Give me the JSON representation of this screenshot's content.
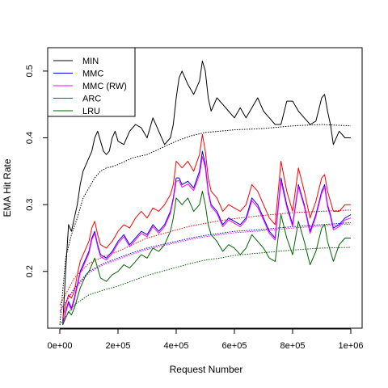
{
  "chart_data": {
    "type": "line",
    "title": "",
    "xlabel": "Request Number",
    "ylabel": "EMA Hit Rate",
    "xlim": [
      0,
      1000000
    ],
    "ylim": [
      0.115,
      0.535
    ],
    "x_ticks": [
      0,
      200000,
      400000,
      600000,
      800000,
      1000000
    ],
    "x_tick_labels": [
      "0e+00",
      "2e+05",
      "4e+05",
      "6e+05",
      "8e+05",
      "1e+06"
    ],
    "y_ticks": [
      0.2,
      0.3,
      0.4,
      0.5
    ],
    "y_tick_labels": [
      "0.2",
      "0.3",
      "0.4",
      "0.5"
    ],
    "grid": false,
    "legend_position": "top-left",
    "series": [
      {
        "name": "MIN",
        "color": "#000000",
        "x": [
          10000,
          20000,
          30000,
          40000,
          50000,
          60000,
          70000,
          80000,
          90000,
          100000,
          110000,
          120000,
          130000,
          140000,
          150000,
          160000,
          170000,
          180000,
          190000,
          200000,
          220000,
          240000,
          260000,
          280000,
          300000,
          320000,
          340000,
          360000,
          380000,
          390000,
          400000,
          410000,
          420000,
          440000,
          460000,
          480000,
          490000,
          500000,
          510000,
          520000,
          540000,
          560000,
          580000,
          600000,
          620000,
          640000,
          660000,
          680000,
          700000,
          720000,
          740000,
          760000,
          780000,
          800000,
          820000,
          840000,
          860000,
          880000,
          900000,
          910000,
          920000,
          930000,
          940000,
          960000,
          980000,
          1000000
        ],
        "y": [
          0.12,
          0.2,
          0.27,
          0.26,
          0.28,
          0.3,
          0.33,
          0.35,
          0.36,
          0.37,
          0.38,
          0.4,
          0.41,
          0.395,
          0.38,
          0.375,
          0.38,
          0.4,
          0.41,
          0.395,
          0.39,
          0.41,
          0.42,
          0.415,
          0.4,
          0.43,
          0.41,
          0.39,
          0.4,
          0.42,
          0.46,
          0.49,
          0.5,
          0.48,
          0.465,
          0.485,
          0.515,
          0.5,
          0.46,
          0.44,
          0.46,
          0.45,
          0.44,
          0.43,
          0.445,
          0.43,
          0.445,
          0.46,
          0.44,
          0.43,
          0.42,
          0.42,
          0.455,
          0.455,
          0.44,
          0.43,
          0.42,
          0.425,
          0.46,
          0.465,
          0.44,
          0.42,
          0.39,
          0.41,
          0.4,
          0.4
        ]
      },
      {
        "name": "MMC",
        "color": "#0000ff",
        "x": [
          10000,
          20000,
          30000,
          40000,
          50000,
          60000,
          70000,
          80000,
          90000,
          100000,
          110000,
          120000,
          130000,
          140000,
          160000,
          180000,
          200000,
          220000,
          240000,
          260000,
          280000,
          300000,
          320000,
          340000,
          360000,
          380000,
          390000,
          400000,
          410000,
          420000,
          440000,
          460000,
          480000,
          490000,
          500000,
          510000,
          520000,
          540000,
          560000,
          580000,
          600000,
          620000,
          640000,
          660000,
          680000,
          700000,
          720000,
          740000,
          760000,
          780000,
          800000,
          820000,
          840000,
          860000,
          880000,
          900000,
          910000,
          920000,
          930000,
          940000,
          960000,
          980000,
          1000000
        ],
        "y": [
          0.12,
          0.14,
          0.155,
          0.145,
          0.16,
          0.18,
          0.2,
          0.21,
          0.22,
          0.23,
          0.25,
          0.26,
          0.24,
          0.225,
          0.22,
          0.23,
          0.245,
          0.255,
          0.24,
          0.25,
          0.26,
          0.255,
          0.27,
          0.26,
          0.27,
          0.29,
          0.31,
          0.34,
          0.34,
          0.33,
          0.335,
          0.325,
          0.35,
          0.38,
          0.36,
          0.32,
          0.3,
          0.29,
          0.27,
          0.28,
          0.275,
          0.27,
          0.28,
          0.31,
          0.3,
          0.28,
          0.26,
          0.25,
          0.34,
          0.3,
          0.27,
          0.33,
          0.3,
          0.26,
          0.285,
          0.32,
          0.33,
          0.3,
          0.285,
          0.265,
          0.27,
          0.28,
          0.285
        ]
      },
      {
        "name": "MMC (RW)",
        "color": "#ff00ff",
        "x": [
          10000,
          20000,
          30000,
          40000,
          50000,
          60000,
          70000,
          80000,
          90000,
          100000,
          110000,
          120000,
          130000,
          140000,
          160000,
          180000,
          200000,
          220000,
          240000,
          260000,
          280000,
          300000,
          320000,
          340000,
          360000,
          380000,
          390000,
          400000,
          410000,
          420000,
          440000,
          460000,
          480000,
          490000,
          500000,
          510000,
          520000,
          540000,
          560000,
          580000,
          600000,
          620000,
          640000,
          660000,
          680000,
          700000,
          720000,
          740000,
          760000,
          780000,
          800000,
          820000,
          840000,
          860000,
          880000,
          900000,
          910000,
          920000,
          930000,
          940000,
          960000,
          980000,
          1000000
        ],
        "y": [
          0.12,
          0.138,
          0.152,
          0.142,
          0.157,
          0.177,
          0.197,
          0.207,
          0.217,
          0.227,
          0.247,
          0.257,
          0.237,
          0.222,
          0.217,
          0.227,
          0.242,
          0.252,
          0.237,
          0.247,
          0.257,
          0.252,
          0.267,
          0.257,
          0.267,
          0.287,
          0.307,
          0.335,
          0.336,
          0.326,
          0.331,
          0.321,
          0.345,
          0.372,
          0.355,
          0.317,
          0.297,
          0.287,
          0.267,
          0.277,
          0.272,
          0.267,
          0.277,
          0.306,
          0.296,
          0.277,
          0.257,
          0.247,
          0.335,
          0.296,
          0.267,
          0.327,
          0.297,
          0.257,
          0.282,
          0.317,
          0.326,
          0.297,
          0.282,
          0.262,
          0.267,
          0.277,
          0.28
        ]
      },
      {
        "name": "ARC",
        "color": "#ff0000",
        "x": [
          10000,
          20000,
          30000,
          40000,
          50000,
          60000,
          70000,
          80000,
          90000,
          100000,
          110000,
          120000,
          130000,
          140000,
          160000,
          180000,
          200000,
          220000,
          240000,
          260000,
          280000,
          300000,
          320000,
          340000,
          360000,
          380000,
          390000,
          400000,
          410000,
          420000,
          440000,
          460000,
          480000,
          490000,
          500000,
          510000,
          520000,
          540000,
          560000,
          580000,
          600000,
          620000,
          640000,
          660000,
          680000,
          700000,
          720000,
          740000,
          760000,
          780000,
          800000,
          820000,
          840000,
          860000,
          880000,
          900000,
          910000,
          920000,
          930000,
          940000,
          960000,
          980000,
          1000000
        ],
        "y": [
          0.13,
          0.15,
          0.165,
          0.16,
          0.17,
          0.195,
          0.215,
          0.225,
          0.235,
          0.245,
          0.265,
          0.275,
          0.255,
          0.24,
          0.235,
          0.245,
          0.26,
          0.27,
          0.265,
          0.28,
          0.29,
          0.28,
          0.295,
          0.29,
          0.3,
          0.315,
          0.33,
          0.365,
          0.36,
          0.355,
          0.365,
          0.35,
          0.375,
          0.405,
          0.38,
          0.34,
          0.32,
          0.31,
          0.29,
          0.3,
          0.295,
          0.29,
          0.3,
          0.33,
          0.32,
          0.3,
          0.28,
          0.27,
          0.365,
          0.32,
          0.29,
          0.355,
          0.32,
          0.28,
          0.305,
          0.34,
          0.345,
          0.32,
          0.305,
          0.29,
          0.29,
          0.3,
          0.3
        ]
      },
      {
        "name": "LRU",
        "color": "#006400",
        "x": [
          10000,
          20000,
          30000,
          40000,
          50000,
          60000,
          70000,
          80000,
          90000,
          100000,
          110000,
          120000,
          130000,
          140000,
          160000,
          180000,
          200000,
          220000,
          240000,
          260000,
          280000,
          300000,
          320000,
          340000,
          360000,
          380000,
          390000,
          400000,
          410000,
          420000,
          440000,
          460000,
          480000,
          490000,
          500000,
          510000,
          520000,
          540000,
          560000,
          580000,
          600000,
          620000,
          640000,
          660000,
          680000,
          700000,
          720000,
          740000,
          760000,
          780000,
          800000,
          820000,
          840000,
          860000,
          880000,
          900000,
          910000,
          920000,
          930000,
          940000,
          960000,
          980000,
          1000000
        ],
        "y": [
          0.12,
          0.13,
          0.14,
          0.135,
          0.145,
          0.16,
          0.175,
          0.185,
          0.195,
          0.2,
          0.21,
          0.22,
          0.205,
          0.19,
          0.185,
          0.195,
          0.2,
          0.21,
          0.205,
          0.215,
          0.225,
          0.22,
          0.235,
          0.23,
          0.24,
          0.26,
          0.28,
          0.31,
          0.305,
          0.3,
          0.31,
          0.29,
          0.3,
          0.32,
          0.3,
          0.27,
          0.255,
          0.245,
          0.23,
          0.24,
          0.235,
          0.225,
          0.235,
          0.255,
          0.245,
          0.235,
          0.22,
          0.215,
          0.285,
          0.25,
          0.225,
          0.275,
          0.245,
          0.21,
          0.23,
          0.265,
          0.27,
          0.245,
          0.23,
          0.215,
          0.24,
          0.25,
          0.25
        ]
      }
    ],
    "cumulative_series": [
      {
        "name": "MIN",
        "color": "#000000",
        "x": [
          0,
          20000,
          40000,
          60000,
          80000,
          100000,
          120000,
          140000,
          160000,
          180000,
          200000,
          250000,
          300000,
          350000,
          400000,
          450000,
          500000,
          550000,
          600000,
          700000,
          800000,
          900000,
          1000000
        ],
        "y": [
          0.12,
          0.22,
          0.255,
          0.28,
          0.31,
          0.325,
          0.34,
          0.35,
          0.355,
          0.357,
          0.36,
          0.37,
          0.375,
          0.385,
          0.395,
          0.403,
          0.408,
          0.41,
          0.412,
          0.414,
          0.418,
          0.42,
          0.418
        ]
      },
      {
        "name": "MMC",
        "color": "#0000ff",
        "x": [
          0,
          50000,
          100000,
          150000,
          200000,
          250000,
          300000,
          350000,
          400000,
          450000,
          500000,
          550000,
          600000,
          700000,
          800000,
          900000,
          1000000
        ],
        "y": [
          0.14,
          0.175,
          0.2,
          0.212,
          0.22,
          0.228,
          0.235,
          0.24,
          0.245,
          0.25,
          0.254,
          0.257,
          0.26,
          0.263,
          0.267,
          0.27,
          0.273
        ]
      },
      {
        "name": "MMC (RW)",
        "color": "#ff00ff",
        "x": [
          0,
          50000,
          100000,
          150000,
          200000,
          250000,
          300000,
          350000,
          400000,
          450000,
          500000,
          550000,
          600000,
          700000,
          800000,
          900000,
          1000000
        ],
        "y": [
          0.14,
          0.173,
          0.198,
          0.21,
          0.218,
          0.226,
          0.233,
          0.238,
          0.243,
          0.248,
          0.252,
          0.255,
          0.258,
          0.261,
          0.265,
          0.268,
          0.271
        ]
      },
      {
        "name": "ARC",
        "color": "#ff0000",
        "x": [
          0,
          50000,
          100000,
          150000,
          200000,
          250000,
          300000,
          350000,
          400000,
          450000,
          500000,
          550000,
          600000,
          700000,
          800000,
          900000,
          1000000
        ],
        "y": [
          0.15,
          0.19,
          0.212,
          0.222,
          0.23,
          0.24,
          0.25,
          0.256,
          0.262,
          0.268,
          0.272,
          0.276,
          0.279,
          0.284,
          0.288,
          0.29,
          0.292
        ]
      },
      {
        "name": "LRU",
        "color": "#006400",
        "x": [
          0,
          50000,
          100000,
          150000,
          200000,
          250000,
          300000,
          350000,
          400000,
          450000,
          500000,
          550000,
          600000,
          700000,
          800000,
          900000,
          1000000
        ],
        "y": [
          0.12,
          0.15,
          0.165,
          0.172,
          0.178,
          0.186,
          0.194,
          0.2,
          0.206,
          0.212,
          0.217,
          0.22,
          0.224,
          0.228,
          0.232,
          0.235,
          0.236
        ]
      }
    ]
  }
}
